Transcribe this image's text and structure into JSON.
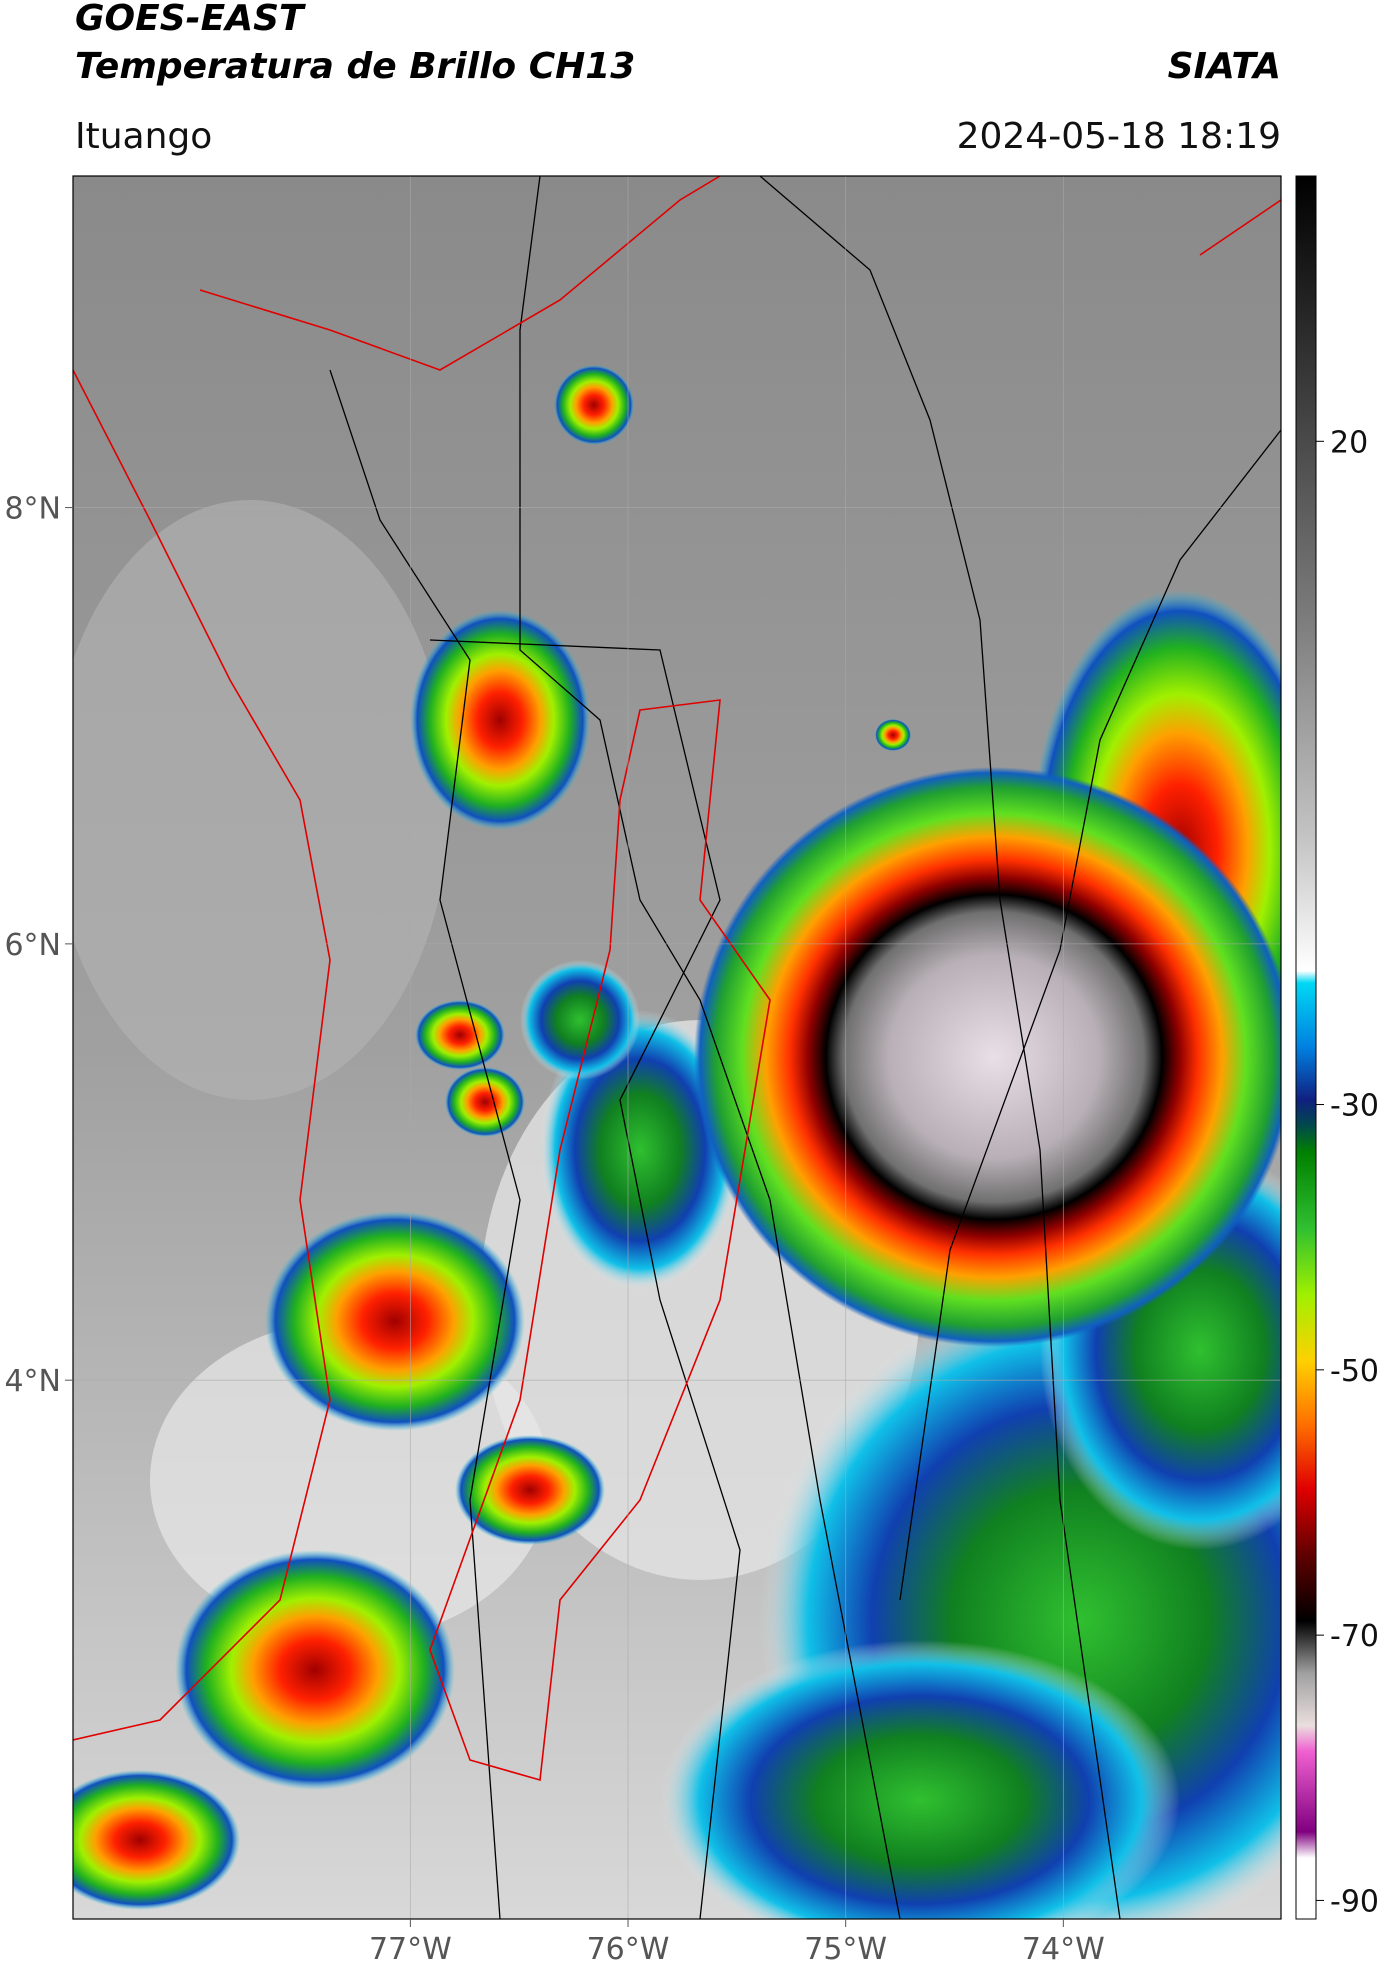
{
  "header": {
    "title": "GOES-EAST",
    "subtitle": "Temperatura de Brillo CH13",
    "source": "SIATA",
    "location": "Ituango",
    "datetime": "2024-05-18 18:19"
  },
  "map": {
    "xlim": [
      -78.55,
      -73.0
    ],
    "ylim": [
      1.53,
      9.52
    ],
    "xticks": [
      {
        "value": -77,
        "label": "77°W"
      },
      {
        "value": -76,
        "label": "76°W"
      },
      {
        "value": -75,
        "label": "75°W"
      },
      {
        "value": -74,
        "label": "74°W"
      }
    ],
    "yticks": [
      {
        "value": 8,
        "label": "8°N"
      },
      {
        "value": 6,
        "label": "6°N"
      },
      {
        "value": 4,
        "label": "4°N"
      }
    ],
    "grid": true
  },
  "colorbar": {
    "lim": [
      -91.4,
      40
    ],
    "ticks": [
      20,
      -30,
      -50,
      -70,
      -90
    ]
  }
}
